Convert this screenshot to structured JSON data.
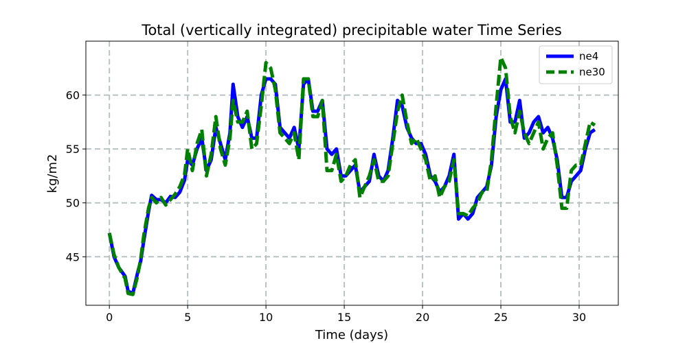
{
  "chart_data": {
    "type": "line",
    "title": "Total (vertically integrated) precipitable water Time Series",
    "xlabel": "Time (days)",
    "ylabel": "kg/m2",
    "xlim": [
      -1.5,
      32.5
    ],
    "ylim": [
      40.5,
      65
    ],
    "xticks": [
      0,
      5,
      10,
      15,
      20,
      25,
      30
    ],
    "yticks": [
      45,
      50,
      55,
      60
    ],
    "grid": true,
    "legend_position": "top-right",
    "series": [
      {
        "name": "ne4",
        "color": "#0000ff",
        "style": "solid",
        "x": [
          0,
          0.3,
          0.6,
          1.0,
          1.2,
          1.5,
          1.8,
          2.0,
          2.2,
          2.5,
          2.7,
          3.0,
          3.3,
          3.6,
          3.9,
          4.2,
          4.5,
          4.8,
          5.0,
          5.3,
          5.6,
          5.9,
          6.2,
          6.5,
          6.8,
          7.1,
          7.4,
          7.7,
          7.9,
          8.2,
          8.5,
          8.8,
          9.1,
          9.4,
          9.7,
          10.0,
          10.3,
          10.6,
          10.9,
          11.2,
          11.5,
          11.8,
          12.1,
          12.4,
          12.7,
          13.0,
          13.3,
          13.6,
          13.9,
          14.2,
          14.5,
          14.8,
          15.1,
          15.4,
          15.7,
          16.0,
          16.3,
          16.6,
          16.9,
          17.2,
          17.5,
          17.8,
          18.1,
          18.4,
          18.7,
          19.0,
          19.3,
          19.6,
          19.9,
          20.2,
          20.5,
          20.8,
          21.1,
          21.4,
          21.7,
          22.0,
          22.3,
          22.6,
          22.9,
          23.2,
          23.5,
          23.8,
          24.1,
          24.4,
          24.7,
          25.0,
          25.3,
          25.6,
          25.9,
          26.2,
          26.5,
          26.8,
          27.1,
          27.4,
          27.7,
          28.0,
          28.3,
          28.6,
          28.9,
          29.2,
          29.5,
          29.8,
          30.1,
          30.4,
          30.7,
          31.0
        ],
        "values": [
          47.2,
          45.0,
          44.0,
          43.2,
          41.8,
          41.6,
          43.5,
          44.6,
          46.5,
          49.2,
          50.7,
          50.3,
          50.3,
          50.0,
          50.6,
          50.5,
          51.0,
          52.1,
          54.0,
          53.5,
          55.0,
          56.0,
          53.0,
          54.0,
          57.0,
          55.5,
          54.0,
          56.5,
          61.0,
          58.0,
          57.0,
          58.0,
          56.0,
          56.0,
          60.0,
          61.5,
          61.5,
          61.0,
          57.0,
          56.5,
          56.0,
          57.0,
          55.0,
          61.0,
          61.5,
          58.5,
          58.5,
          59.5,
          55.0,
          54.5,
          55.0,
          52.5,
          52.5,
          53.0,
          53.5,
          51.0,
          51.5,
          52.0,
          54.5,
          52.5,
          52.0,
          53.0,
          56.0,
          59.5,
          59.0,
          57.0,
          56.0,
          55.5,
          55.5,
          54.5,
          52.5,
          52.0,
          51.0,
          51.5,
          52.5,
          54.5,
          48.5,
          49.0,
          48.5,
          49.0,
          50.5,
          51.0,
          51.5,
          53.5,
          58.0,
          60.5,
          61.5,
          57.5,
          57.5,
          59.5,
          56.0,
          56.5,
          57.5,
          58.0,
          56.5,
          57.0,
          56.0,
          54.0,
          50.5,
          50.5,
          52.0,
          52.5,
          53.0,
          55.0,
          56.5,
          56.8
        ]
      },
      {
        "name": "ne30",
        "color": "#008000",
        "style": "dashed",
        "x": [
          0,
          0.3,
          0.6,
          1.0,
          1.2,
          1.5,
          1.8,
          2.0,
          2.2,
          2.5,
          2.7,
          3.0,
          3.3,
          3.6,
          3.9,
          4.2,
          4.5,
          4.8,
          5.0,
          5.3,
          5.6,
          5.9,
          6.2,
          6.5,
          6.8,
          7.1,
          7.4,
          7.7,
          7.9,
          8.2,
          8.5,
          8.8,
          9.1,
          9.4,
          9.7,
          10.0,
          10.3,
          10.6,
          10.9,
          11.2,
          11.5,
          11.8,
          12.1,
          12.4,
          12.7,
          13.0,
          13.3,
          13.6,
          13.9,
          14.2,
          14.5,
          14.8,
          15.1,
          15.4,
          15.7,
          16.0,
          16.3,
          16.6,
          16.9,
          17.2,
          17.5,
          17.8,
          18.1,
          18.4,
          18.7,
          19.0,
          19.3,
          19.6,
          19.9,
          20.2,
          20.5,
          20.8,
          21.1,
          21.4,
          21.7,
          22.0,
          22.3,
          22.6,
          22.9,
          23.2,
          23.5,
          23.8,
          24.1,
          24.4,
          24.7,
          25.0,
          25.3,
          25.6,
          25.9,
          26.2,
          26.5,
          26.8,
          27.1,
          27.4,
          27.7,
          28.0,
          28.3,
          28.6,
          28.9,
          29.2,
          29.5,
          29.8,
          30.1,
          30.4,
          30.7,
          31.0
        ],
        "values": [
          47.2,
          45.2,
          44.0,
          43.0,
          41.6,
          41.5,
          43.2,
          44.8,
          47.0,
          49.5,
          50.5,
          50.0,
          50.5,
          49.8,
          50.3,
          50.8,
          51.5,
          52.6,
          55.0,
          53.0,
          55.5,
          56.8,
          52.5,
          54.5,
          58.0,
          55.0,
          53.5,
          56.0,
          59.5,
          57.5,
          57.5,
          58.5,
          55.0,
          55.5,
          59.0,
          63.0,
          62.5,
          60.5,
          56.5,
          56.0,
          55.5,
          56.5,
          54.0,
          61.5,
          61.5,
          58.0,
          58.0,
          59.5,
          53.0,
          53.0,
          54.5,
          52.0,
          52.5,
          53.5,
          54.0,
          50.5,
          51.5,
          52.5,
          54.0,
          52.0,
          52.0,
          52.5,
          55.5,
          58.5,
          60.0,
          57.5,
          55.5,
          56.0,
          55.0,
          54.0,
          52.0,
          52.5,
          50.5,
          51.5,
          52.0,
          54.0,
          49.0,
          49.0,
          48.8,
          49.5,
          50.0,
          51.0,
          51.0,
          54.0,
          59.0,
          63.5,
          62.5,
          58.0,
          56.5,
          58.5,
          56.5,
          55.5,
          56.5,
          57.5,
          55.0,
          56.0,
          56.5,
          53.5,
          49.5,
          49.5,
          53.0,
          53.5,
          53.5,
          55.5,
          57.5,
          57.2
        ]
      }
    ]
  }
}
